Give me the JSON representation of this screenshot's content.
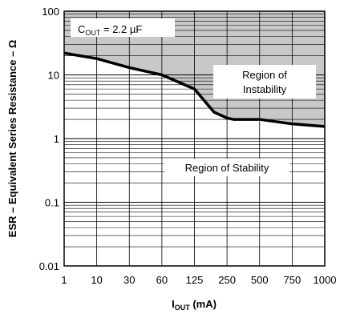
{
  "chart_data": {
    "type": "area",
    "x_scale": "categorical",
    "y_scale": "log",
    "x_ticks": [
      "1",
      "10",
      "30",
      "60",
      "125",
      "250",
      "500",
      "750",
      "1000"
    ],
    "y_ticks": [
      "0.01",
      "0.1",
      "1",
      "10",
      "100"
    ],
    "ylim": [
      0.01,
      100
    ],
    "xlabel_main": "I",
    "xlabel_sub": "OUT",
    "xlabel_unit": " (mA)",
    "ylabel": "ESR – Equivalent Series Resistance – Ω",
    "annotation_cap_main": "C",
    "annotation_cap_sub": "OUT",
    "annotation_cap_value": " = 2.2 µF",
    "region_upper_line1": "Region of",
    "region_upper_line2": "Instability",
    "region_lower": "Region of Stability",
    "shaded_color": "#c8c8c8",
    "series": [
      {
        "x": [
          "1",
          "10",
          "30",
          "60",
          "125",
          "200",
          "250",
          "300",
          "500",
          "750",
          "1000"
        ],
        "values": [
          22,
          18,
          13,
          10,
          6,
          2.6,
          2.1,
          2.0,
          2.0,
          1.7,
          1.55
        ]
      }
    ]
  }
}
